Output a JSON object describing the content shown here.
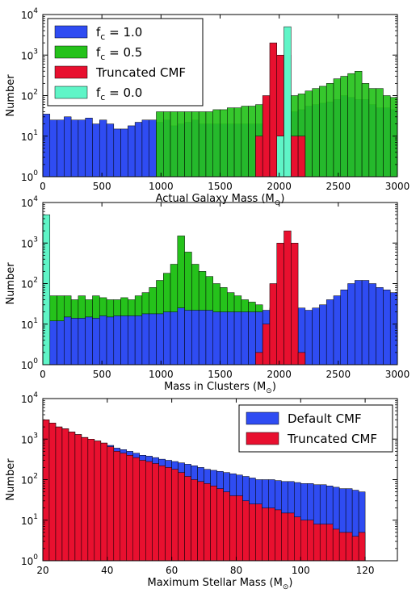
{
  "colors": {
    "fc1": "#2f4cf2",
    "fc05": "#25c21b",
    "fc05_overlap": "#207a1e",
    "trunc": "#e8102f",
    "fc0": "#5ff5c7",
    "default": "#2f4cf2"
  },
  "chart_data": [
    {
      "type": "bar",
      "xlabel": "Actual Galaxy Mass (M",
      "xlabel_sub": "⊙",
      "xlabel_end": ")",
      "ylabel": "Number",
      "xlim": [
        0,
        3000
      ],
      "ylog": true,
      "ylim_exp": [
        0,
        4
      ],
      "xticks": [
        "0",
        "500",
        "1000",
        "1500",
        "2000",
        "2500",
        "3000"
      ],
      "ytick_exp": [
        "0",
        "1",
        "2",
        "3",
        "4"
      ],
      "legend": [
        {
          "label": "f",
          "sub": "c",
          "rest": " = 1.0",
          "color_key": "fc1"
        },
        {
          "label": "f",
          "sub": "c",
          "rest": " = 0.5",
          "color_key": "fc05"
        },
        {
          "label": "Truncated CMF",
          "sub": "",
          "rest": "",
          "color_key": "trunc"
        },
        {
          "label": "f",
          "sub": "c",
          "rest": " = 0.0",
          "color_key": "fc0"
        }
      ],
      "legend_pos": "top-left",
      "bin_width": 60,
      "series": [
        {
          "color_key": "fc1",
          "start": 0,
          "values": [
            35,
            25,
            25,
            30,
            25,
            25,
            28,
            20,
            25,
            20,
            15,
            15,
            18,
            22,
            25,
            25,
            22,
            25,
            18,
            20,
            22,
            25,
            20,
            20,
            20,
            20,
            20,
            20,
            20,
            20,
            20,
            20,
            25,
            30,
            35,
            40,
            45,
            55,
            60,
            65,
            70,
            80,
            100,
            90,
            80,
            80,
            60,
            50,
            50,
            45,
            40,
            35,
            30,
            28,
            25,
            22,
            25,
            20,
            15,
            5
          ]
        },
        {
          "color_key": "fc05",
          "start": 960,
          "values": [
            40,
            40,
            40,
            40,
            40,
            40,
            40,
            40,
            45,
            45,
            50,
            50,
            55,
            55,
            60,
            65,
            70,
            80,
            90,
            100,
            110,
            130,
            150,
            170,
            200,
            260,
            300,
            350,
            400,
            200,
            150,
            150,
            100,
            90,
            80,
            70,
            60,
            50,
            40,
            30,
            28,
            22,
            20,
            15,
            12,
            10,
            8,
            7,
            4,
            3
          ]
        },
        {
          "color_key": "trunc",
          "start": 1800,
          "values": [
            10,
            100,
            2000,
            1000,
            1000,
            10,
            10
          ]
        },
        {
          "color_key": "fc0",
          "start": 1980,
          "values": [
            10,
            5000
          ]
        }
      ]
    },
    {
      "type": "bar",
      "xlabel": "Mass in Clusters (M",
      "xlabel_sub": "⊙",
      "xlabel_end": ")",
      "ylabel": "Number",
      "xlim": [
        0,
        3000
      ],
      "ylog": true,
      "ylim_exp": [
        0,
        4
      ],
      "xticks": [
        "0",
        "500",
        "1000",
        "1500",
        "2000",
        "2500",
        "3000"
      ],
      "ytick_exp": [
        "0",
        "1",
        "2",
        "3",
        "4"
      ],
      "bin_width": 60,
      "series": [
        {
          "color_key": "fc05",
          "start": 0,
          "values": [
            40,
            50,
            50,
            50,
            40,
            50,
            40,
            50,
            45,
            40,
            40,
            45,
            40,
            50,
            60,
            80,
            120,
            180,
            300,
            1500,
            600,
            300,
            200,
            150,
            100,
            80,
            60,
            50,
            40,
            35,
            30,
            20,
            15,
            12,
            8
          ]
        },
        {
          "color_key": "fc1",
          "start": 0,
          "values": [
            0,
            12,
            12,
            15,
            14,
            14,
            15,
            14,
            16,
            15,
            16,
            16,
            16,
            16,
            18,
            18,
            18,
            20,
            20,
            25,
            22,
            22,
            22,
            22,
            20,
            20,
            20,
            20,
            20,
            20,
            20,
            22,
            25,
            25,
            25,
            25,
            25,
            22,
            25,
            30,
            40,
            50,
            70,
            100,
            120,
            120,
            100,
            80,
            70,
            60,
            50,
            40,
            40,
            30,
            30,
            20,
            20,
            15,
            15,
            15,
            10
          ]
        },
        {
          "color_key": "trunc",
          "start": 1800,
          "values": [
            2,
            10,
            100,
            1000,
            2000,
            1000,
            2
          ]
        },
        {
          "color_key": "fc0",
          "start": 0,
          "values": [
            5000
          ]
        }
      ]
    },
    {
      "type": "bar",
      "xlabel": "Maximum Stellar Mass (M",
      "xlabel_sub": "⊙",
      "xlabel_end": ")",
      "ylabel": "Number",
      "xlim": [
        20,
        130
      ],
      "ylog": true,
      "ylim_exp": [
        0,
        4
      ],
      "xticks": [
        "20",
        "40",
        "60",
        "80",
        "100",
        "120"
      ],
      "ytick_exp": [
        "0",
        "1",
        "2",
        "3",
        "4"
      ],
      "legend": [
        {
          "label": "Default CMF",
          "sub": "",
          "rest": "",
          "color_key": "default"
        },
        {
          "label": "Truncated CMF",
          "sub": "",
          "rest": "",
          "color_key": "trunc"
        }
      ],
      "legend_pos": "top-right",
      "bin_width": 2,
      "series": [
        {
          "color_key": "default",
          "start": 20,
          "values": [
            3000,
            2500,
            2000,
            1800,
            1500,
            1300,
            1100,
            1000,
            900,
            800,
            700,
            600,
            550,
            500,
            450,
            400,
            380,
            350,
            320,
            300,
            280,
            260,
            240,
            220,
            200,
            180,
            170,
            160,
            150,
            140,
            130,
            120,
            110,
            100,
            100,
            100,
            95,
            90,
            90,
            85,
            80,
            80,
            75,
            75,
            70,
            65,
            60,
            60,
            55,
            50
          ]
        },
        {
          "color_key": "trunc",
          "start": 20,
          "values": [
            3000,
            2500,
            2000,
            1800,
            1500,
            1300,
            1100,
            1000,
            900,
            800,
            650,
            500,
            450,
            400,
            350,
            300,
            280,
            250,
            220,
            200,
            180,
            150,
            120,
            100,
            90,
            80,
            70,
            60,
            50,
            40,
            40,
            30,
            25,
            25,
            20,
            20,
            18,
            15,
            15,
            12,
            10,
            10,
            8,
            8,
            8,
            6,
            5,
            5,
            4,
            5
          ]
        }
      ]
    }
  ]
}
